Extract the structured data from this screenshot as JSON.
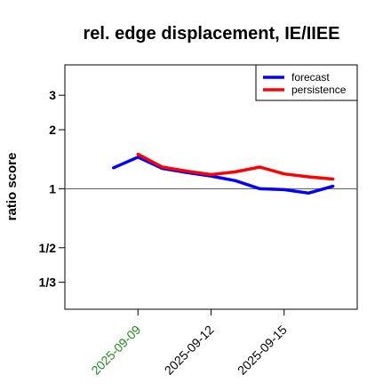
{
  "chart_data": {
    "type": "line",
    "title": "rel. edge displacement, IE/IIEE",
    "xlabel": "",
    "ylabel": "ratio score",
    "y_scale": "log",
    "y_ticks": [
      {
        "value": 0.3333,
        "label": "1/3"
      },
      {
        "value": 0.5,
        "label": "1/2"
      },
      {
        "value": 1,
        "label": "1"
      },
      {
        "value": 2,
        "label": "2"
      },
      {
        "value": 3,
        "label": "3"
      }
    ],
    "ylim": [
      0.2427,
      4.287
    ],
    "x_ticks": [
      {
        "label": "2025-09-09",
        "color": "#228B22"
      },
      {
        "label": "2025-09-12",
        "color": "#000000"
      },
      {
        "label": "2025-09-15",
        "color": "#000000"
      }
    ],
    "x_ticks_at": [
      "2025-09-09",
      "2025-09-12",
      "2025-09-15"
    ],
    "x": [
      "2025-09-08",
      "2025-09-09",
      "2025-09-10",
      "2025-09-11",
      "2025-09-12",
      "2025-09-13",
      "2025-09-14",
      "2025-09-15",
      "2025-09-16",
      "2025-09-17"
    ],
    "xlim": [
      "2025-09-06",
      "2025-09-18"
    ],
    "reference_line": 1,
    "legend_position": "top-right",
    "series": [
      {
        "name": "forecast",
        "color": "#0000ff",
        "values": [
          1.28,
          1.45,
          1.27,
          1.21,
          1.16,
          1.1,
          1.0,
          0.99,
          0.95,
          1.03
        ]
      },
      {
        "name": "persistence",
        "color": "#ff0000",
        "values": [
          null,
          1.5,
          1.29,
          1.23,
          1.18,
          1.22,
          1.29,
          1.19,
          1.15,
          1.12
        ]
      }
    ]
  }
}
